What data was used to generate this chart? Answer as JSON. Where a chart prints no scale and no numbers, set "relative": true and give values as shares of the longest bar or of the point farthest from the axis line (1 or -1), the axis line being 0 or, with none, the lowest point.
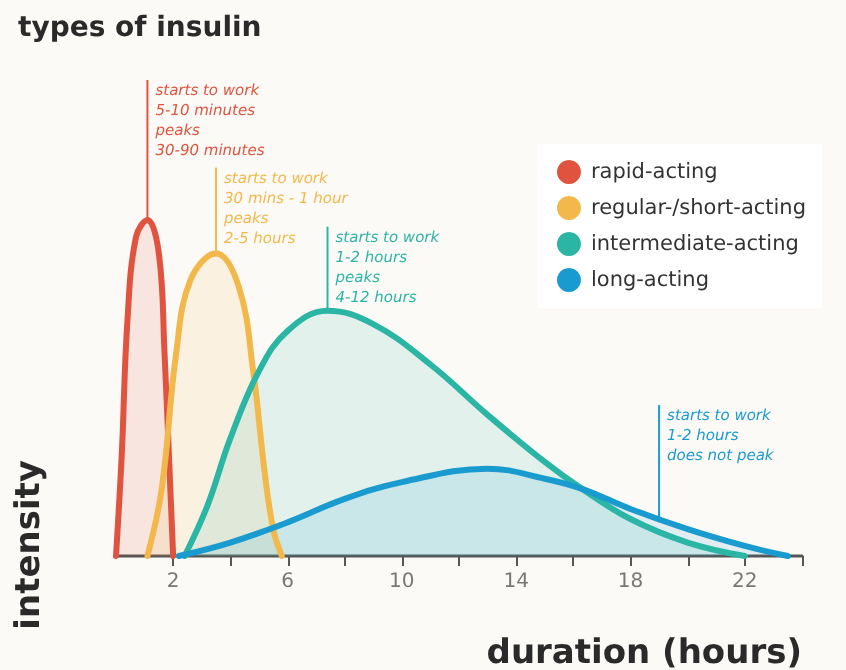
{
  "chart_data": {
    "type": "area",
    "title": "types of insulin",
    "xlabel": "duration (hours)",
    "ylabel": "intensity",
    "relative": true,
    "legend": "top right",
    "grid": false,
    "marker": "none",
    "xlim": [
      0,
      24
    ],
    "xticks": [
      2,
      {
        "value": 4,
        "label": null
      },
      6,
      {
        "value": 8,
        "label": null
      },
      10,
      {
        "value": 12,
        "label": null
      },
      14,
      {
        "value": 16,
        "label": null
      },
      18,
      {
        "value": 20,
        "label": null
      },
      22,
      {
        "value": 24,
        "label": null
      }
    ],
    "series": [
      {
        "name": "rapid-acting",
        "color": "#e0533f",
        "x": [
          0,
          0.2,
          0.4,
          0.7,
          1.1,
          1.5,
          1.7,
          1.9,
          2
        ],
        "values": [
          0,
          0.3,
          0.7,
          0.95,
          1,
          0.9,
          0.6,
          0.2,
          0
        ]
      },
      {
        "name": "regular-/short-acting",
        "color": "#f2b84b",
        "x": [
          1.1,
          1.6,
          2.1,
          2.6,
          3.5,
          4.3,
          4.8,
          5.2,
          5.5,
          5.8
        ],
        "values": [
          0,
          0.2,
          0.6,
          0.82,
          0.9,
          0.8,
          0.55,
          0.25,
          0.08,
          0
        ]
      },
      {
        "name": "intermediate-acting",
        "color": "#2bb5a5",
        "x": [
          2.4,
          3.2,
          4,
          5,
          6,
          7.4,
          9,
          11,
          13,
          15,
          16.3,
          18,
          20,
          22
        ],
        "values": [
          0,
          0.15,
          0.35,
          0.55,
          0.67,
          0.73,
          0.69,
          0.57,
          0.42,
          0.28,
          0.2,
          0.11,
          0.04,
          0
        ]
      },
      {
        "name": "long-acting",
        "color": "#1a9bd0",
        "x": [
          2.2,
          4,
          6,
          8,
          10,
          13,
          15,
          16.3,
          18,
          20,
          22,
          23.5
        ],
        "values": [
          0,
          0.04,
          0.1,
          0.17,
          0.22,
          0.26,
          0.23,
          0.2,
          0.14,
          0.08,
          0.03,
          0
        ]
      }
    ],
    "annotations": [
      {
        "text": "starts to work\n5-10 minutes\npeaks\n30-90 minutes",
        "x": 1.1,
        "y": 1
      },
      {
        "text": "starts to work\n30 mins - 1 hour\npeaks\n2-5 hours",
        "x": 3.5,
        "y": 0.9
      },
      {
        "text": "starts to work\n1-2 hours\npeaks\n4-12 hours",
        "x": 7.4,
        "y": 0.73
      },
      {
        "text": "starts to work\n1-2 hours\ndoes not peak",
        "x": 19,
        "y": 0.11
      }
    ]
  }
}
